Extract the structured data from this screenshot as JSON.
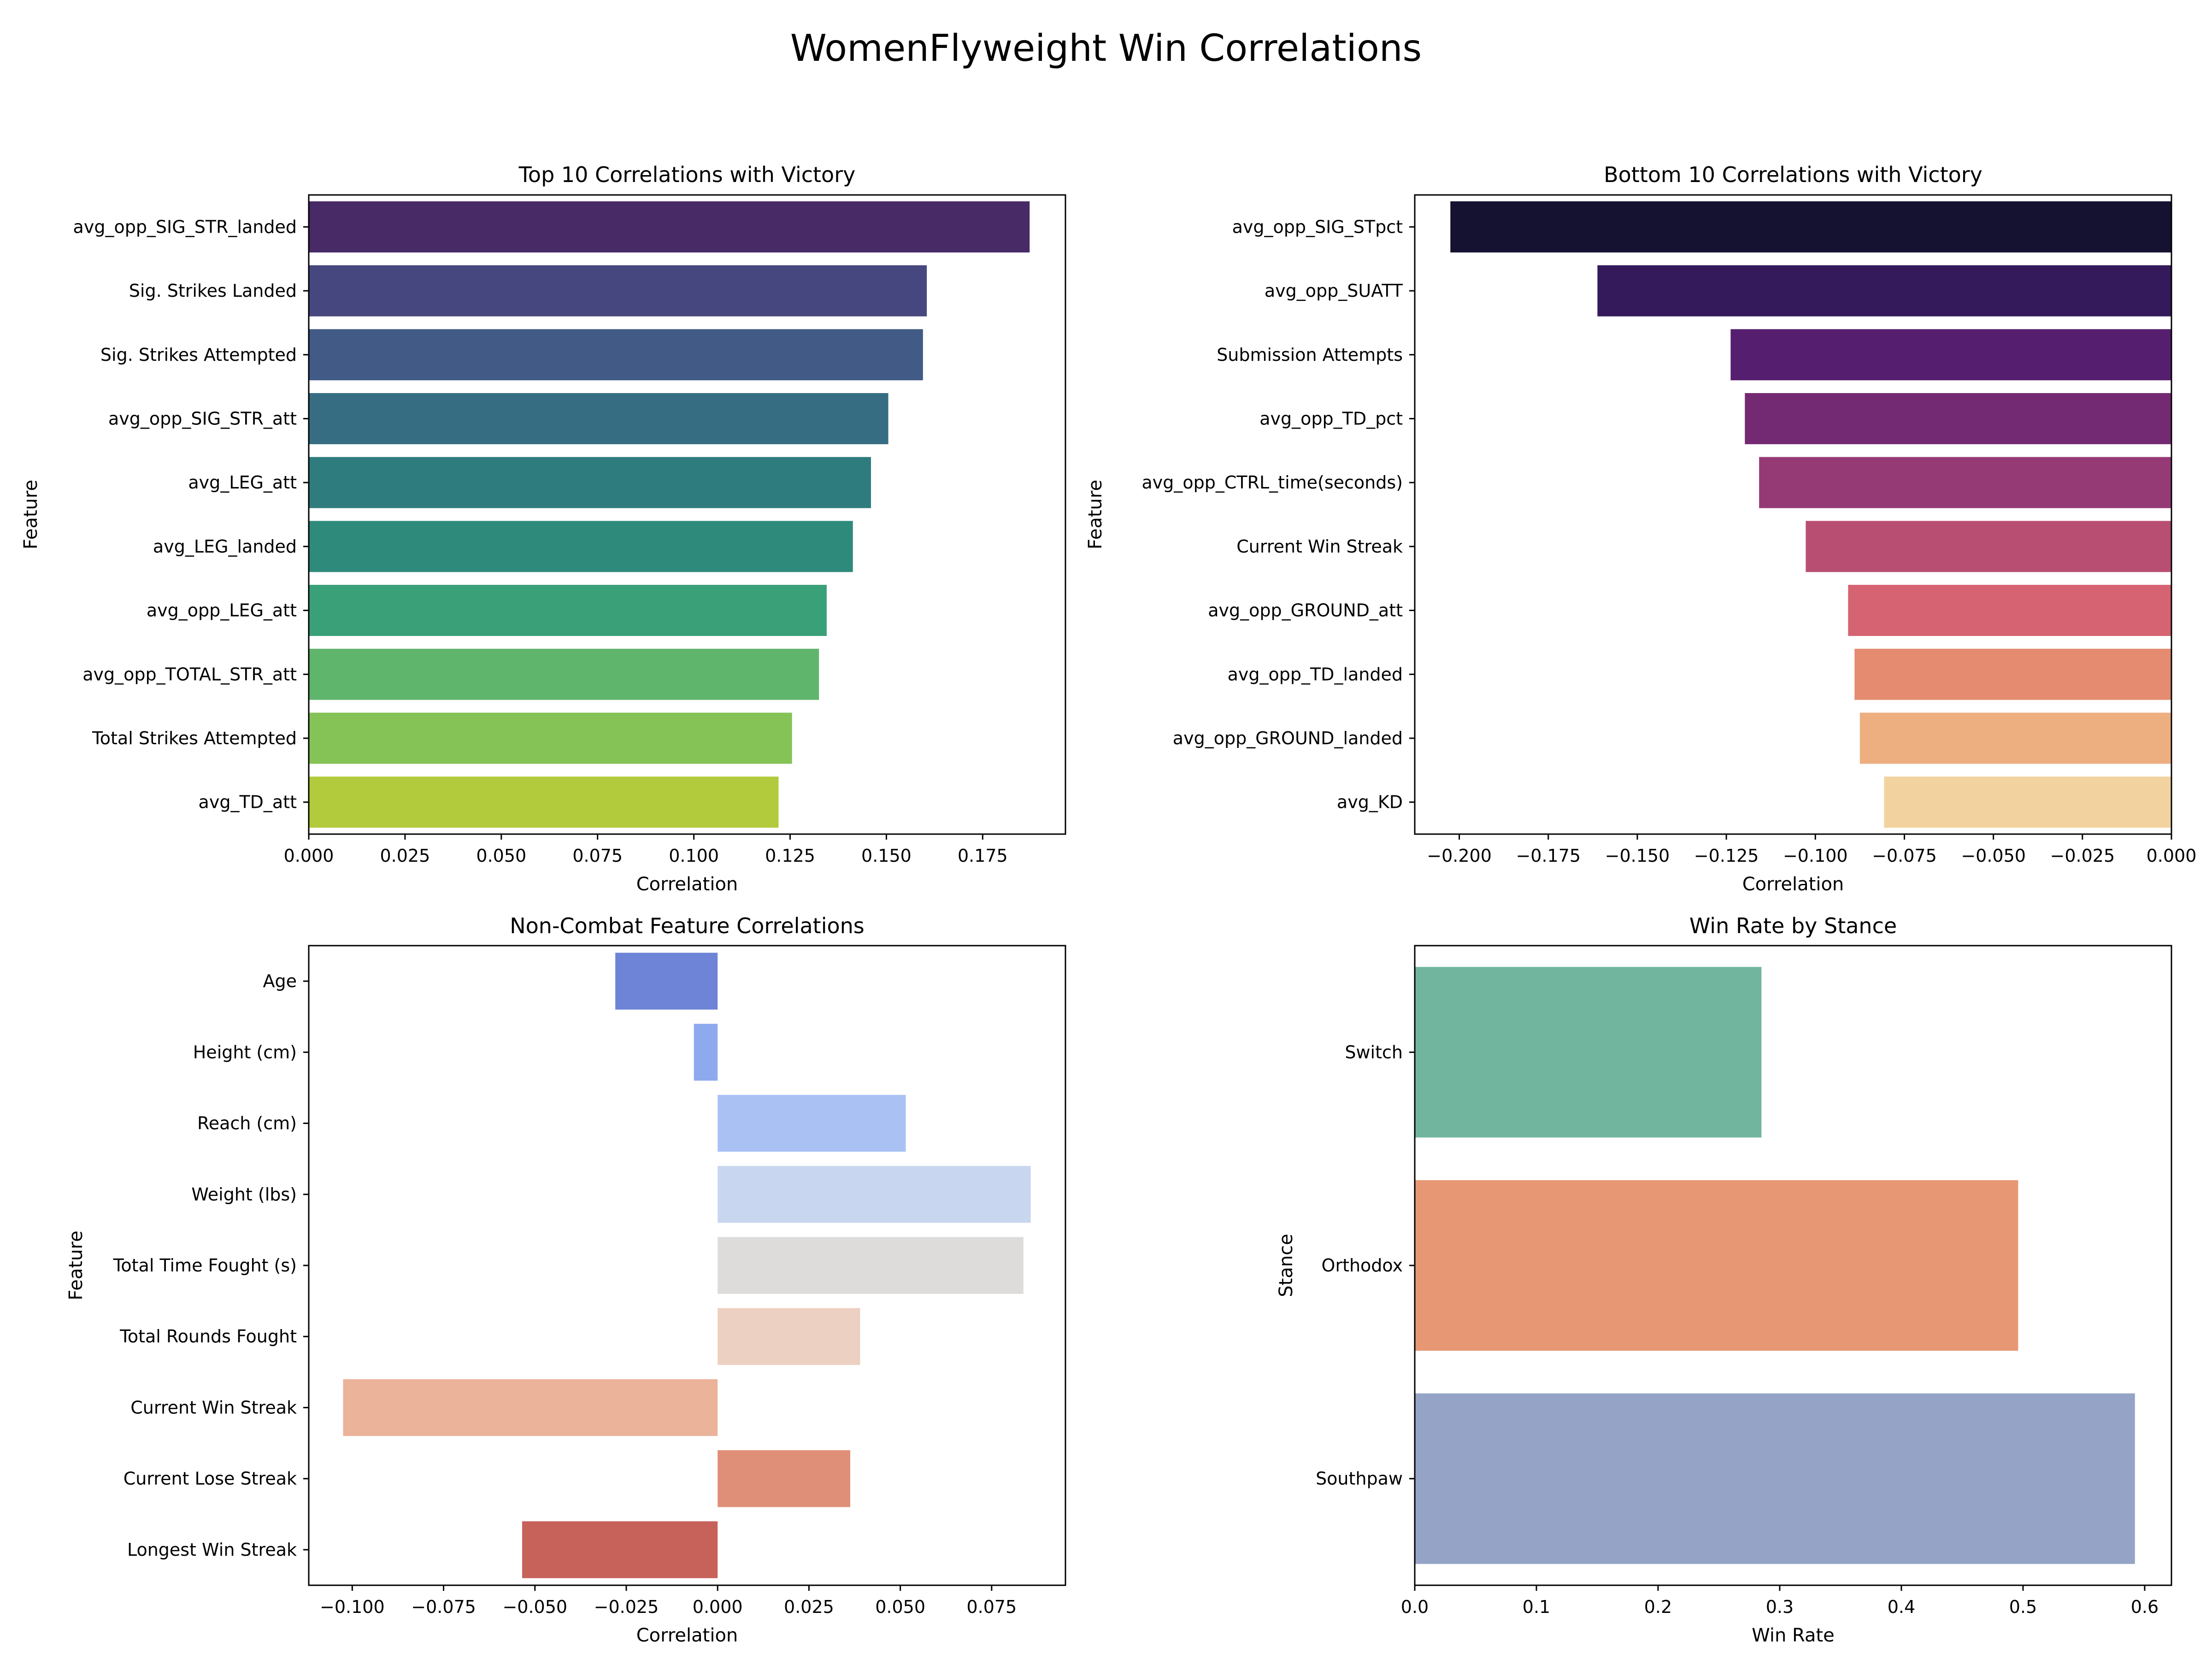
{
  "figure": {
    "title": "WomenFlyweight Win Correlations"
  },
  "chart_data": [
    {
      "id": "top10",
      "type": "bar",
      "orientation": "horizontal",
      "title": "Top 10 Correlations with Victory",
      "xlabel": "Correlation",
      "ylabel": "Feature",
      "xlim": [
        0,
        0.1965
      ],
      "xticks": [
        0,
        0.025,
        0.05,
        0.075,
        0.1,
        0.125,
        0.15,
        0.175
      ],
      "xtick_labels": [
        "0.000",
        "0.025",
        "0.050",
        "0.075",
        "0.100",
        "0.125",
        "0.150",
        "0.175"
      ],
      "categories": [
        "avg_opp_SIG_STR_landed",
        "Sig. Strikes Landed",
        "Sig. Strikes Attempted",
        "avg_opp_SIG_STR_att",
        "avg_LEG_att",
        "avg_LEG_landed",
        "avg_opp_LEG_att",
        "avg_opp_TOTAL_STR_att",
        "Total Strikes Attempted",
        "avg_TD_att"
      ],
      "values": [
        0.1872,
        0.1605,
        0.1595,
        0.1505,
        0.146,
        0.1413,
        0.1345,
        0.1325,
        0.1255,
        0.122
      ],
      "colors": [
        "#482a67",
        "#47477f",
        "#415b86",
        "#366d82",
        "#2f7c7e",
        "#2e8b7b",
        "#3aa078",
        "#60b56d",
        "#86c357",
        "#b2cb3d"
      ]
    },
    {
      "id": "bottom10",
      "type": "bar",
      "orientation": "horizontal",
      "title": "Bottom 10 Correlations with Victory",
      "xlabel": "Correlation",
      "ylabel": "Feature",
      "xlim": [
        -0.2125,
        0
      ],
      "xticks": [
        -0.2,
        -0.175,
        -0.15,
        -0.125,
        -0.1,
        -0.075,
        -0.05,
        -0.025,
        0
      ],
      "xtick_labels": [
        "−0.200",
        "−0.175",
        "−0.150",
        "−0.125",
        "−0.100",
        "−0.075",
        "−0.050",
        "−0.025",
        "0.000"
      ],
      "categories": [
        "avg_opp_SIG_STpct",
        "avg_opp_SUATT",
        "Submission Attempts",
        "avg_opp_TD_pct",
        "avg_opp_CTRL_time(seconds)",
        "Current Win Streak",
        "avg_opp_GROUND_att",
        "avg_opp_TD_landed",
        "avg_opp_GROUND_landed",
        "avg_KD"
      ],
      "values": [
        -0.2025,
        -0.1612,
        -0.1238,
        -0.1198,
        -0.1158,
        -0.1027,
        -0.0908,
        -0.089,
        -0.0875,
        -0.0807
      ],
      "colors": [
        "#141131",
        "#351a5b",
        "#561e6f",
        "#742a72",
        "#963a76",
        "#b94e73",
        "#d56371",
        "#e48b70",
        "#edae80",
        "#f2d3a0"
      ]
    },
    {
      "id": "noncombat",
      "type": "bar",
      "orientation": "horizontal",
      "title": "Non-Combat Feature Correlations",
      "xlabel": "Correlation",
      "ylabel": "Feature",
      "xlim": [
        -0.1119,
        0.0952
      ],
      "xticks": [
        -0.1,
        -0.075,
        -0.05,
        -0.025,
        0,
        0.025,
        0.05,
        0.075
      ],
      "xtick_labels": [
        "−0.100",
        "−0.075",
        "−0.050",
        "−0.025",
        "0.000",
        "0.025",
        "0.050",
        "0.075"
      ],
      "categories": [
        "Age",
        "Height (cm)",
        "Reach (cm)",
        "Weight (lbs)",
        "Total Time Fought (s)",
        "Total Rounds Fought",
        "Current Win Streak",
        "Current Lose Streak",
        "Longest Win Streak"
      ],
      "values": [
        -0.028,
        -0.0065,
        0.0515,
        0.0857,
        0.0837,
        0.039,
        -0.1025,
        0.0363,
        -0.0535
      ],
      "colors": [
        "#6e84d6",
        "#8ea9ee",
        "#aac2f3",
        "#c8d6ef",
        "#dddcdb",
        "#ecd0c1",
        "#ebb39a",
        "#df8f78",
        "#c6625a"
      ]
    },
    {
      "id": "stance",
      "type": "bar",
      "orientation": "horizontal",
      "title": "Win Rate by Stance",
      "xlabel": "Win Rate",
      "ylabel": "Stance",
      "xlim": [
        0,
        0.622
      ],
      "xticks": [
        0,
        0.1,
        0.2,
        0.3,
        0.4,
        0.5,
        0.6
      ],
      "xtick_labels": [
        "0.0",
        "0.1",
        "0.2",
        "0.3",
        "0.4",
        "0.5",
        "0.6"
      ],
      "categories": [
        "Switch",
        "Orthodox",
        "Southpaw"
      ],
      "values": [
        0.285,
        0.496,
        0.592
      ],
      "colors": [
        "#72b59f",
        "#e89775",
        "#95a4c6"
      ]
    }
  ]
}
